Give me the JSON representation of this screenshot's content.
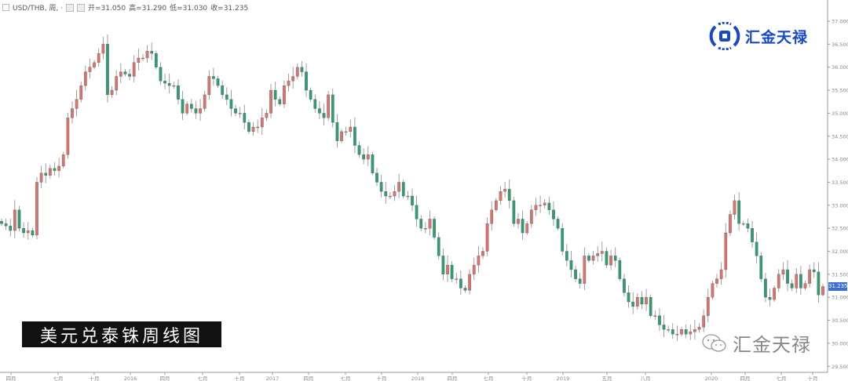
{
  "header": {
    "symbol": "USD/THB, 周, ·",
    "open": "开=31.050",
    "high": "高=31.290",
    "low": "低=31.030",
    "close": "收=31.235"
  },
  "logo_text": "汇金天禄",
  "caption": "美元兑泰铢周线图",
  "watermark": "汇金天禄",
  "colors": {
    "up": "#d9736c",
    "down": "#2e9e72",
    "last_price_bg": "#3b6fd6",
    "logo": "#1848c8"
  },
  "chart_data": {
    "type": "candlestick",
    "title": "",
    "interval": "weekly",
    "up_color": "red",
    "down_color": "green",
    "ylim": [
      29.3,
      37.35
    ],
    "y_ticks": [
      "37.000",
      "36.500",
      "36.000",
      "35.500",
      "35.000",
      "34.500",
      "34.000",
      "33.500",
      "33.000",
      "32.500",
      "32.000",
      "31.500",
      "31.000",
      "30.500",
      "30.000",
      "29.500"
    ],
    "x_ticks": [
      "四月",
      "七月",
      "十月",
      "2016",
      "四月",
      "七月",
      "十月",
      "2017",
      "四月",
      "七月",
      "十月",
      "2018",
      "四月",
      "七月",
      "十月",
      "2019",
      "五月",
      "八月",
      "2020",
      "四月",
      "七月",
      "十月"
    ],
    "last_price": "31.235",
    "last_bar": {
      "open": 31.05,
      "high": 31.29,
      "low": 31.03,
      "close": 31.235
    },
    "close": [
      32.6,
      32.55,
      32.45,
      32.9,
      32.5,
      32.4,
      32.45,
      32.35,
      33.5,
      33.7,
      33.65,
      33.8,
      33.75,
      33.85,
      34.1,
      34.9,
      35.1,
      35.3,
      35.6,
      35.9,
      36.0,
      36.1,
      36.3,
      36.5,
      35.4,
      35.5,
      35.8,
      35.9,
      35.85,
      35.8,
      36.1,
      36.2,
      36.2,
      36.35,
      36.3,
      36.0,
      35.7,
      35.65,
      35.6,
      35.6,
      35.3,
      35.0,
      35.2,
      35.1,
      35.0,
      35.1,
      35.4,
      35.8,
      35.75,
      35.6,
      35.4,
      35.3,
      35.1,
      35.0,
      35.0,
      34.8,
      34.6,
      34.7,
      34.7,
      34.9,
      35.0,
      35.5,
      35.3,
      35.2,
      35.6,
      35.7,
      35.8,
      36.0,
      35.9,
      35.5,
      35.3,
      35.1,
      35.0,
      34.9,
      35.4,
      34.8,
      34.4,
      34.6,
      34.6,
      34.7,
      34.3,
      34.1,
      34.0,
      34.1,
      33.7,
      33.5,
      33.3,
      33.2,
      33.2,
      33.3,
      33.5,
      33.2,
      33.2,
      33.0,
      32.7,
      32.5,
      32.5,
      32.7,
      32.3,
      31.9,
      31.5,
      31.7,
      31.4,
      31.4,
      31.2,
      31.15,
      31.5,
      31.7,
      31.9,
      32.0,
      32.6,
      32.9,
      33.1,
      33.3,
      33.35,
      33.1,
      32.6,
      32.7,
      32.4,
      32.6,
      32.9,
      33.0,
      33.0,
      33.05,
      32.9,
      32.7,
      32.5,
      32.0,
      31.8,
      31.6,
      31.4,
      31.3,
      31.9,
      31.8,
      31.9,
      31.95,
      32.0,
      31.7,
      31.9,
      31.8,
      31.4,
      31.1,
      30.9,
      30.8,
      31.0,
      30.85,
      31.0,
      30.6,
      30.6,
      30.4,
      30.3,
      30.3,
      30.2,
      30.2,
      30.3,
      30.2,
      30.25,
      30.3,
      30.35,
      30.6,
      31.0,
      31.3,
      31.4,
      31.6,
      32.4,
      32.8,
      33.1,
      32.6,
      32.6,
      32.5,
      32.2,
      31.9,
      31.4,
      31.0,
      30.95,
      31.2,
      31.5,
      31.6,
      31.3,
      31.2,
      31.5,
      31.2,
      31.3,
      31.6,
      31.55,
      31.05,
      31.235
    ]
  }
}
